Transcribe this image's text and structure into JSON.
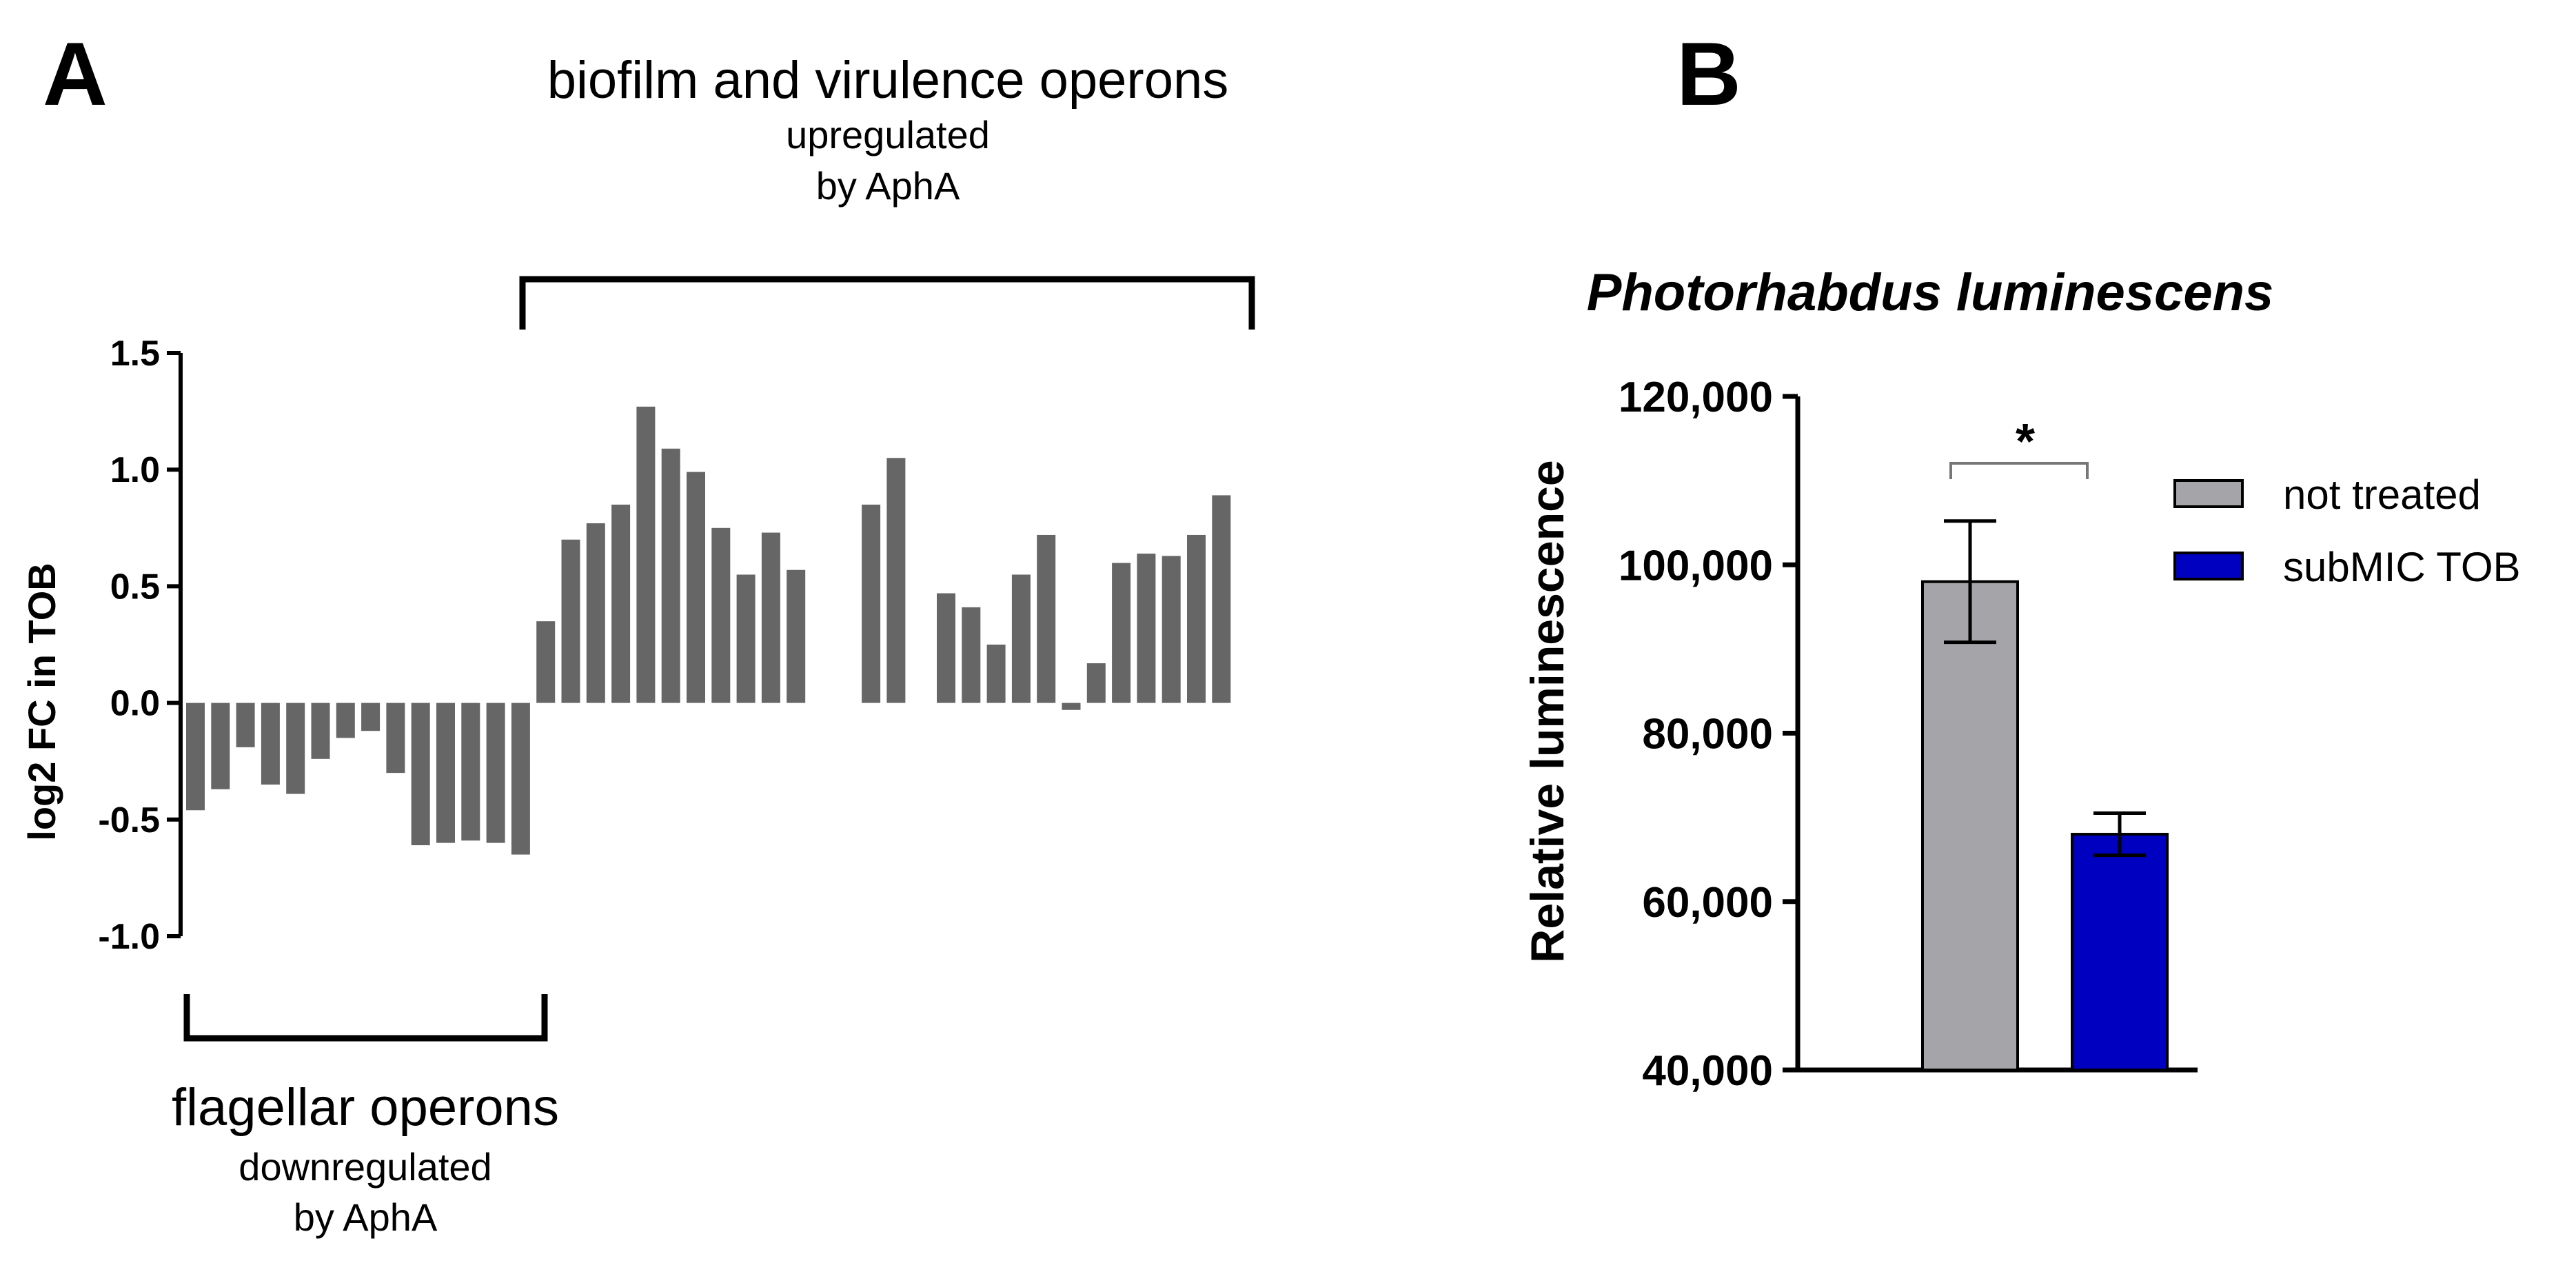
{
  "panel_labels": {
    "a": "A",
    "b": "B"
  },
  "panel_a": {
    "upper_group": {
      "line1": "biofilm and virulence operons",
      "line2": "upregulated",
      "line3": "by AphA"
    },
    "lower_group": {
      "line1": "flagellar operons",
      "line2": "downregulated",
      "line3": "by AphA"
    }
  },
  "panel_b": {
    "legend": [
      {
        "label": "not treated",
        "color": "#a5a5a9"
      },
      {
        "label": "subMIC TOB",
        "color": "#0000c0"
      }
    ],
    "significance": "*"
  },
  "chart_data": [
    {
      "type": "bar",
      "title": "",
      "xlabel": "",
      "ylabel": "log2 FC in TOB",
      "ylim": [
        -1.0,
        1.5
      ],
      "yticks": [
        "1.5",
        "1.0",
        "0.5",
        "0.0",
        "-0.5",
        "-1.0"
      ],
      "bar_color": "#666666",
      "grid": false,
      "values": [
        -0.46,
        -0.37,
        -0.19,
        -0.35,
        -0.39,
        -0.24,
        -0.15,
        -0.12,
        -0.3,
        -0.61,
        -0.6,
        -0.59,
        -0.6,
        -0.65,
        0.35,
        0.7,
        0.77,
        0.85,
        1.27,
        1.09,
        0.99,
        0.75,
        0.55,
        0.73,
        0.57,
        null,
        null,
        0.85,
        1.05,
        null,
        0.47,
        0.41,
        0.25,
        0.55,
        0.72,
        -0.03,
        0.17,
        0.6,
        0.64,
        0.63,
        0.72,
        0.89
      ]
    },
    {
      "type": "bar",
      "title": "Photorhabdus luminescens",
      "xlabel": "",
      "ylabel": "Relative luminescence",
      "ylim": [
        40000,
        120000
      ],
      "yticks": [
        "120,000",
        "100,000",
        "80,000",
        "60,000",
        "40,000"
      ],
      "grid": false,
      "legend_position": "right",
      "categories": [
        "not treated",
        "subMIC TOB"
      ],
      "values": [
        98000,
        68000
      ],
      "errors": [
        7200,
        2500
      ]
    }
  ]
}
